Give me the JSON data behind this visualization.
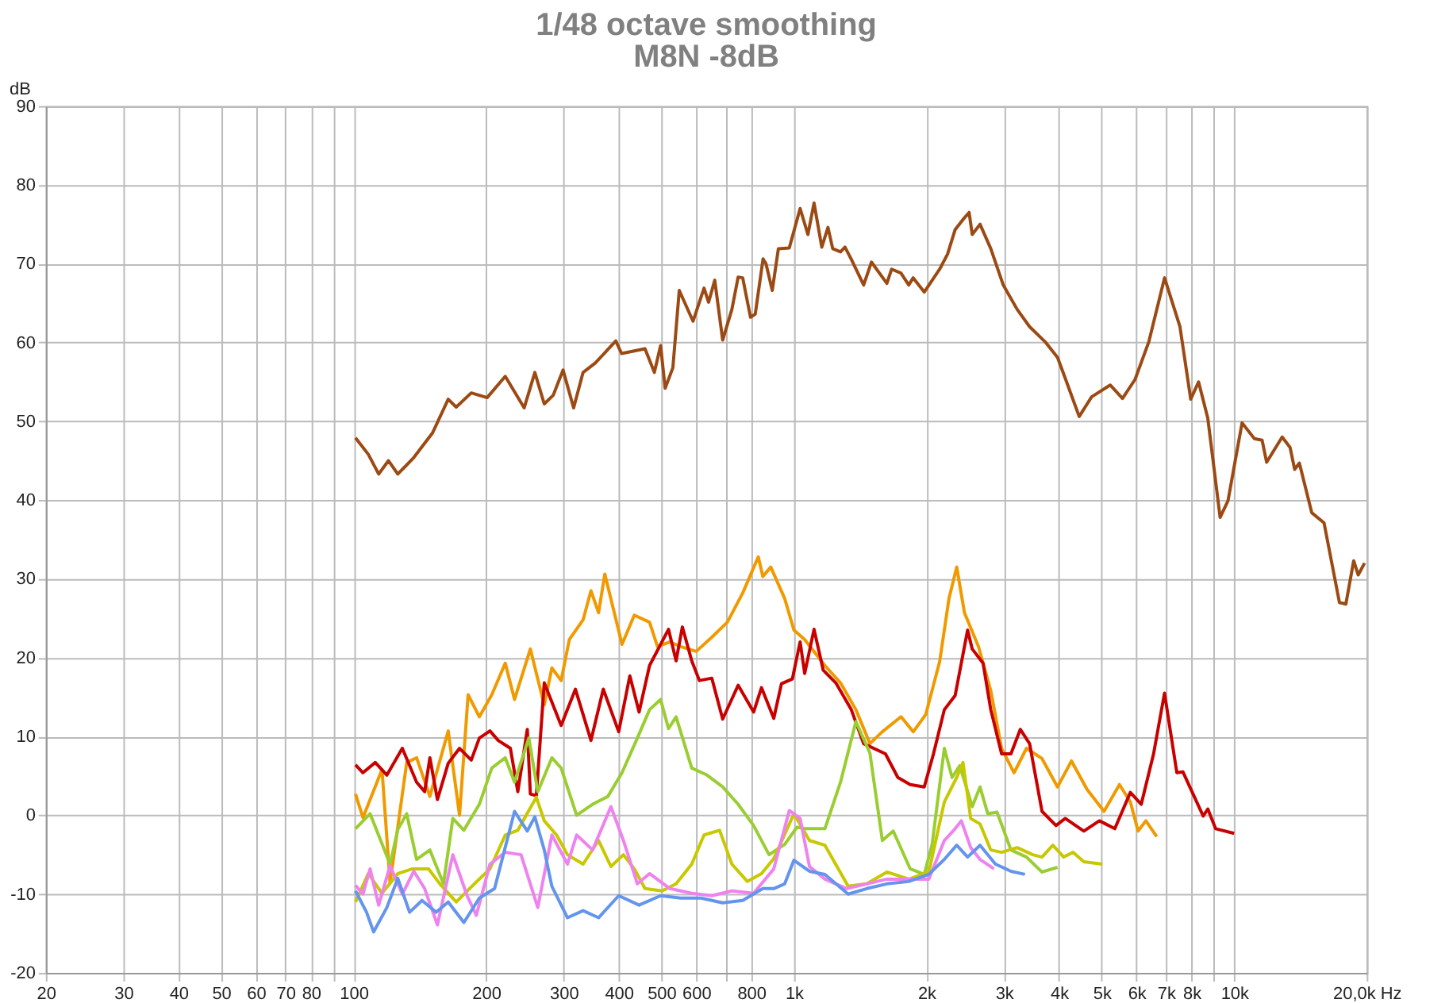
{
  "chart_data": {
    "type": "line",
    "title": "1/48 octave smoothing",
    "subtitle": "M8N -8dB",
    "ylabel": "dB",
    "log": "x",
    "grid": true,
    "xlim": [
      20,
      20000
    ],
    "xticks": [
      20,
      30,
      40,
      50,
      60,
      70,
      80,
      {
        "value": 90,
        "label": null
      },
      100,
      200,
      300,
      400,
      500,
      600,
      {
        "value": 700,
        "label": null
      },
      800,
      {
        "value": 1000,
        "label": "1k"
      },
      {
        "value": 2000,
        "label": "2k"
      },
      {
        "value": 3000,
        "label": "3k"
      },
      {
        "value": 4000,
        "label": "4k"
      },
      {
        "value": 5000,
        "label": "5k"
      },
      {
        "value": 6000,
        "label": "6k"
      },
      {
        "value": 7000,
        "label": "7k"
      },
      {
        "value": 8000,
        "label": "8k"
      },
      {
        "value": 9000,
        "label": null
      },
      {
        "value": 10000,
        "label": "10k"
      },
      {
        "value": 20000,
        "label": "20,0k Hz"
      }
    ],
    "ylim": [
      -20,
      90
    ],
    "yticks": [
      -20,
      -10,
      0,
      10,
      20,
      30,
      40,
      50,
      60,
      70,
      80,
      90
    ],
    "series": [
      {
        "color": "#9c4a14",
        "x": [
          101,
          108,
          114,
          120,
          126,
          137,
          151,
          164,
          171,
          185,
          201,
          221,
          244,
          258,
          271,
          284,
          299,
          316,
          332,
          354,
          394,
          406,
          459,
          482,
          498,
          510,
          531,
          549,
          590,
          625,
          640,
          661,
          689,
          723,
          747,
          765,
          797,
          817,
          851,
          864,
          893,
          922,
          976,
          1033,
          1076,
          1111,
          1157,
          1195,
          1225,
          1276,
          1306,
          1349,
          1440,
          1500,
          1626,
          1667,
          1750,
          1823,
          1866,
          1977,
          2143,
          2233,
          2323,
          2421,
          2500,
          2541,
          2647,
          2800,
          2988,
          3214,
          3430,
          3718,
          3970,
          4130,
          4446,
          4744,
          5228,
          5576,
          5953,
          6400,
          6947,
          7530,
          7966,
          8300,
          8710,
          9290,
          9680,
          10420,
          11110,
          11570,
          11850,
          12850,
          13390,
          13720,
          14060,
          15000,
          16000,
          17340,
          17930,
          18680,
          19130,
          19770
        ],
        "values": [
          47.9,
          45.8,
          43.3,
          45,
          43.3,
          45.4,
          48.5,
          52.8,
          51.8,
          53.6,
          53,
          55.7,
          51.7,
          56.2,
          52.2,
          53.3,
          56.5,
          51.7,
          56.2,
          57.4,
          60.2,
          58.6,
          59.2,
          56.2,
          59.6,
          54.2,
          56.8,
          66.6,
          62.7,
          66.9,
          65.1,
          67.9,
          60.3,
          64.2,
          68.3,
          68.2,
          63.2,
          63.6,
          70.6,
          70,
          66.6,
          71.9,
          72,
          77,
          73.7,
          77.7,
          72.1,
          74.6,
          71.9,
          71.5,
          72.1,
          70.6,
          67.3,
          70.2,
          67.5,
          69.3,
          68.8,
          67.3,
          68.2,
          66.4,
          69.3,
          71.2,
          74.3,
          75.6,
          76.5,
          73.7,
          75,
          71.9,
          67.3,
          64.2,
          62,
          60.1,
          58.1,
          55.5,
          50.6,
          53.1,
          54.6,
          52.9,
          55.3,
          60.1,
          68.2,
          62,
          52.8,
          55,
          50.4,
          37.8,
          39.9,
          49.8,
          47.8,
          47.6,
          44.8,
          48,
          46.7,
          43.9,
          44.7,
          38.4,
          37.1,
          27,
          26.8,
          32.3,
          30.5,
          32
        ]
      },
      {
        "color": "#f09a00",
        "x": [
          101,
          105,
          116,
          121,
          132,
          139,
          149,
          164,
          174,
          182,
          193,
          206,
          221,
          232,
          252,
          271,
          282,
          296,
          309,
          332,
          346,
          360,
          372,
          407,
          434,
          470,
          490,
          523,
          553,
          600,
          651,
          706,
          765,
          830,
          850,
          886,
          953,
          1000,
          1058,
          1176,
          1276,
          1383,
          1488,
          1588,
          1751,
          1867,
          1993,
          2143,
          2250,
          2343,
          2440,
          2626,
          2800,
          2963,
          3162,
          3375,
          3660,
          3969,
          4270,
          4631,
          5062,
          5488,
          5809,
          6049,
          6300,
          6669
        ],
        "values": [
          2.7,
          -0.3,
          5.8,
          -8.6,
          6.7,
          7.3,
          2.4,
          10.7,
          0,
          15.3,
          12.5,
          15.3,
          19.3,
          14.7,
          21.1,
          14,
          18.7,
          17.1,
          22.3,
          24.8,
          28.5,
          25.7,
          30.6,
          21.7,
          25.4,
          24.5,
          21.4,
          22,
          21.4,
          20.8,
          22.6,
          24.5,
          28.2,
          32.8,
          30.3,
          31.5,
          27.5,
          23.5,
          22.3,
          19,
          16.8,
          13.4,
          9.1,
          10.6,
          12.5,
          10.6,
          12.8,
          19.5,
          27.5,
          31.5,
          25.7,
          21.4,
          15.8,
          8.5,
          5.4,
          8.5,
          7.2,
          3.6,
          6.9,
          3.3,
          0.5,
          3.9,
          1.7,
          -2,
          -0.7,
          -2.7
        ]
      },
      {
        "color": "#c80000",
        "x": [
          101,
          105,
          112,
          119,
          129,
          139,
          145,
          149,
          155,
          164,
          174,
          185,
          193,
          204,
          213,
          227,
          236,
          248,
          252,
          260,
          271,
          296,
          319,
          346,
          369,
          400,
          424,
          445,
          470,
          519,
          540,
          558,
          586,
          610,
          651,
          689,
          747,
          810,
          844,
          900,
          937,
          992,
          1033,
          1058,
          1111,
          1166,
          1245,
          1350,
          1440,
          1614,
          1722,
          1837,
          1977,
          2075,
          2196,
          2324,
          2480,
          2541,
          2689,
          2800,
          2963,
          3111,
          3267,
          3430,
          3660,
          3938,
          4133,
          4555,
          4940,
          5356,
          5809,
          6150,
          6560,
          6946,
          7408,
          7650,
          8034,
          8503,
          8712,
          9073,
          9997
        ],
        "values": [
          6.4,
          5.4,
          6.7,
          5.1,
          8.5,
          4.2,
          3,
          7.3,
          2,
          6.6,
          8.5,
          7,
          9.8,
          10.7,
          9.5,
          8.5,
          3,
          10.9,
          2.7,
          2.5,
          16.8,
          11.4,
          16,
          9.5,
          16,
          10.6,
          17.7,
          13.1,
          19,
          23.6,
          19.6,
          23.9,
          19.6,
          17.1,
          17.4,
          12.2,
          16.5,
          13.1,
          16.2,
          12.3,
          16.7,
          17.3,
          22,
          18,
          23.6,
          18.4,
          16.8,
          13.4,
          9.1,
          7.8,
          4.8,
          3.9,
          3.6,
          7.8,
          13.4,
          15.2,
          23.5,
          21.1,
          19.3,
          13.4,
          7.8,
          7.8,
          10.9,
          9.1,
          0.5,
          -1.3,
          -0.4,
          -2,
          -0.7,
          -1.7,
          2.9,
          1.4,
          7.8,
          15.5,
          5.4,
          5.5,
          2.9,
          -0.1,
          0.8,
          -1.7,
          -2.3
        ]
      },
      {
        "color": "#9acd32",
        "x": [
          101,
          109,
          121,
          126,
          132,
          139,
          149,
          160,
          168,
          178,
          193,
          206,
          221,
          232,
          250,
          262,
          282,
          296,
          321,
          349,
          378,
          407,
          441,
          470,
          498,
          519,
          540,
          586,
          635,
          689,
          747,
          810,
          878,
          953,
          1016,
          1058,
          1176,
          1276,
          1383,
          1488,
          1588,
          1681,
          1837,
          1977,
          2060,
          2196,
          2287,
          2381,
          2541,
          2647,
          2756,
          2893,
          3111,
          3375,
          3660,
          3969
        ],
        "values": [
          -1.7,
          0.2,
          -6.2,
          -1.8,
          0.2,
          -5.6,
          -4.4,
          -8.7,
          -0.4,
          -1.9,
          1.4,
          6,
          7.3,
          4.2,
          9.8,
          3,
          7.3,
          6,
          0,
          1.4,
          2.4,
          5.4,
          9.8,
          13.4,
          14.7,
          11,
          12.5,
          6,
          5.1,
          3.6,
          1.4,
          -1.3,
          -5,
          -3.7,
          -1.5,
          -1.7,
          -1.7,
          4.2,
          11.9,
          7.9,
          -3.2,
          -2,
          -6.8,
          -7.5,
          -3.7,
          8.5,
          4.8,
          6.3,
          1.1,
          3.6,
          0.2,
          0.4,
          -4.4,
          -5.3,
          -7.2,
          -6.6
        ]
      },
      {
        "color": "#c8c800",
        "x": [
          101,
          108,
          116,
          126,
          136,
          148,
          157,
          171,
          188,
          204,
          221,
          236,
          260,
          271,
          289,
          306,
          332,
          360,
          384,
          410,
          434,
          459,
          502,
          540,
          586,
          625,
          678,
          723,
          784,
          844,
          900,
          1000,
          1085,
          1176,
          1328,
          1464,
          1627,
          1823,
          2025,
          2196,
          2343,
          2421,
          2521,
          2647,
          2800,
          2963,
          3214,
          3486,
          3660,
          3873,
          4099,
          4304,
          4555,
          5020
        ],
        "values": [
          -11,
          -7.4,
          -9.9,
          -7.4,
          -6.8,
          -6.8,
          -8.7,
          -11,
          -8.7,
          -6.8,
          -2.5,
          -1.9,
          2.3,
          -0.7,
          -2.5,
          -5,
          -6.2,
          -3.2,
          -6.5,
          -5,
          -6.8,
          -9.3,
          -9.6,
          -8.7,
          -6.2,
          -2.5,
          -1.9,
          -6.2,
          -8.4,
          -7.4,
          -5.5,
          0.2,
          -3.2,
          -3.8,
          -9,
          -8.7,
          -7.2,
          -8.1,
          -7.2,
          1.7,
          4.8,
          6.7,
          -0.4,
          -1.1,
          -4.4,
          -4.7,
          -4.1,
          -5,
          -5.3,
          -3.8,
          -5.3,
          -4.7,
          -5.9,
          -6.2
        ]
      },
      {
        "color": "#ee82ee",
        "x": [
          101,
          105,
          109,
          114,
          121,
          129,
          137,
          145,
          155,
          168,
          181,
          190,
          204,
          221,
          240,
          262,
          282,
          306,
          321,
          349,
          384,
          410,
          441,
          470,
          523,
          586,
          651,
          723,
          810,
          900,
          976,
          1033,
          1085,
          1176,
          1317,
          1464,
          1627,
          1867,
          2025,
          2196,
          2324,
          2400,
          2521,
          2647,
          2846
        ],
        "values": [
          -8.9,
          -10,
          -6.8,
          -11.4,
          -6.4,
          -10,
          -7.1,
          -9.3,
          -13.9,
          -5,
          -10.2,
          -12.7,
          -6.2,
          -4.7,
          -5,
          -11.7,
          -2.5,
          -6.2,
          -2.5,
          -4.4,
          1.1,
          -3.2,
          -8.7,
          -7.4,
          -9.3,
          -9.9,
          -10.2,
          -9.6,
          -9.9,
          -6.8,
          0.6,
          -0.4,
          -6.5,
          -8.1,
          -9.3,
          -8.7,
          -8.1,
          -8.1,
          -8.1,
          -3.2,
          -1.7,
          -0.7,
          -4.1,
          -5.6,
          -6.8
        ]
      },
      {
        "color": "#6495ed",
        "x": [
          101,
          107,
          111,
          119,
          126,
          134,
          143,
          154,
          164,
          178,
          193,
          209,
          232,
          248,
          258,
          271,
          282,
          306,
          332,
          360,
          400,
          445,
          498,
          553,
          615,
          689,
          765,
          850,
          900,
          953,
          1000,
          1085,
          1176,
          1328,
          1464,
          1627,
          1823,
          2025,
          2196,
          2343,
          2480,
          2647,
          2870,
          3111,
          3348
        ],
        "values": [
          -9.6,
          -12.3,
          -14.8,
          -11.7,
          -8,
          -12.3,
          -10.8,
          -12.3,
          -11,
          -13.6,
          -10.5,
          -9.3,
          0.5,
          -2,
          -0.2,
          -4.4,
          -9,
          -13,
          -12.1,
          -13,
          -10.2,
          -11.4,
          -10.2,
          -10.5,
          -10.5,
          -11.1,
          -10.8,
          -9.3,
          -9.3,
          -8.7,
          -5.7,
          -7.1,
          -7.5,
          -10,
          -9.3,
          -8.7,
          -8.4,
          -7.5,
          -5.6,
          -3.8,
          -5.3,
          -3.8,
          -6.2,
          -7.1,
          -7.5
        ]
      }
    ]
  }
}
